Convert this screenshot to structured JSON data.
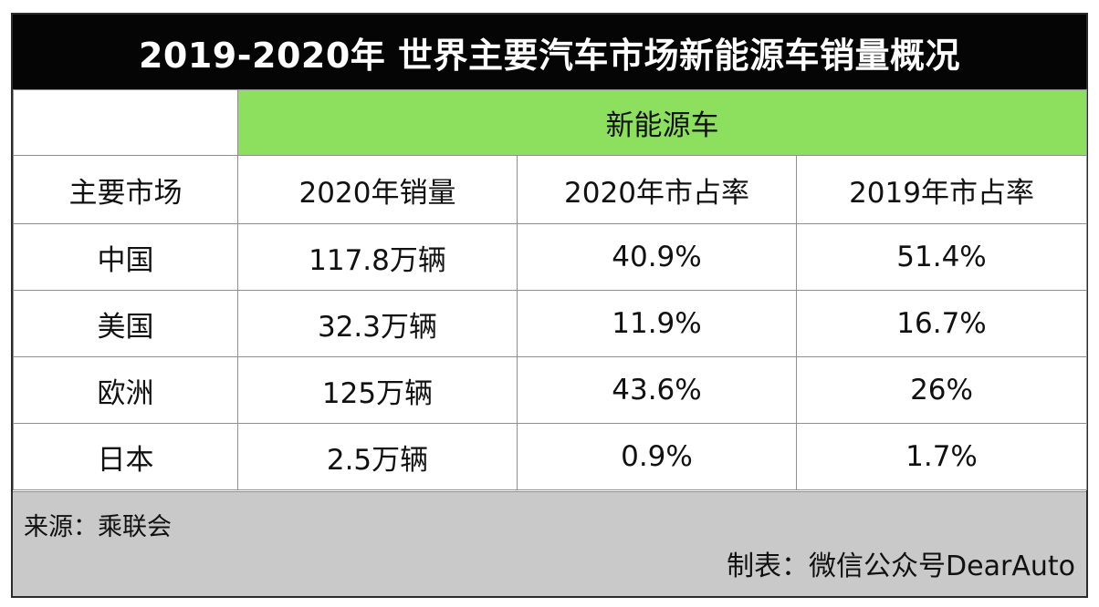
{
  "title": "2019-2020年 世界主要汽车市场新能源车销量概况",
  "chart_data": {
    "type": "table",
    "title": "2019-2020年 世界主要汽车市场新能源车销量概况",
    "group_header": "新能源车",
    "columns": [
      "主要市场",
      "2020年销量",
      "2020年市占率",
      "2019年市占率"
    ],
    "rows": [
      [
        "中国",
        "117.8万辆",
        "40.9%",
        "51.4%"
      ],
      [
        "美国",
        "32.3万辆",
        "11.9%",
        "16.7%"
      ],
      [
        "欧洲",
        "125万辆",
        "43.6%",
        "26%"
      ],
      [
        "日本",
        "2.5万辆",
        "0.9%",
        "1.7%"
      ]
    ]
  },
  "footer": {
    "source": "来源：乘联会",
    "maker": "制表：微信公众号DearAuto"
  },
  "colors": {
    "title_bg": "#050505",
    "group_bg": "#8ddf5e",
    "footer_bg": "#c9c9c9"
  }
}
